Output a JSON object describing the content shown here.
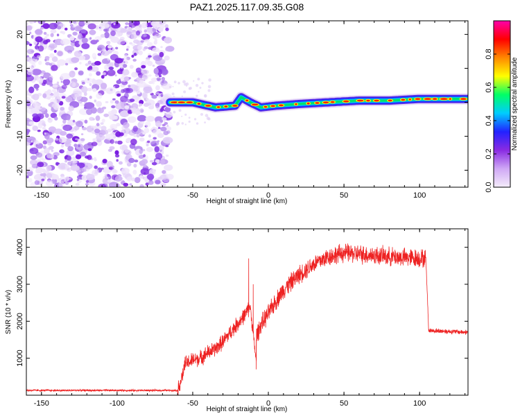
{
  "title": "PAZ1.2025.117.09.35.G08",
  "chart_data": [
    {
      "type": "heatmap",
      "xlabel": "Height of straight line (km)",
      "ylabel": "Frequency (Hz)",
      "xlim": [
        -160,
        132
      ],
      "ylim": [
        -25,
        24
      ],
      "xticks": [
        -150,
        -100,
        -50,
        0,
        50,
        100
      ],
      "yticks": [
        -20,
        -10,
        0,
        10,
        20
      ],
      "colorbar": {
        "label": "Normalized spectral amplitude",
        "range": [
          0,
          1
        ],
        "ticks": [
          "0.0",
          "0.2",
          "0.4",
          "0.6",
          "0.8"
        ],
        "colors": [
          "#f4ecfa",
          "#cfa8f5",
          "#8a2be2",
          "#2222ff",
          "#00ccff",
          "#00ff66",
          "#ffff00",
          "#ff8800",
          "#ff0000",
          "#ff00aa"
        ]
      },
      "noise_region_x": [
        -160,
        -65
      ],
      "ridge": {
        "x": [
          -65,
          -50,
          -35,
          -22,
          -18,
          -12,
          -5,
          5,
          20,
          40,
          60,
          80,
          100,
          110,
          132
        ],
        "y": [
          0,
          0,
          -1.5,
          -1,
          1.5,
          0,
          -1.5,
          -1,
          -0.5,
          0,
          0.5,
          0.5,
          1,
          1,
          1
        ]
      }
    },
    {
      "type": "line",
      "xlabel": "Height of straight line (km)",
      "ylabel": "SNR (10 * v/v)",
      "xlim": [
        -160,
        132
      ],
      "ylim": [
        0,
        4500
      ],
      "xticks": [
        -150,
        -100,
        -50,
        0,
        50,
        100
      ],
      "yticks": [
        1000,
        2000,
        3000,
        4000
      ],
      "color": "#ee2222",
      "segments": [
        {
          "x": [
            -160,
            -60
          ],
          "y": [
            130,
            130
          ],
          "noise": 30
        },
        {
          "x": [
            -60,
            -57,
            -55,
            -50,
            -45,
            -40,
            -35,
            -30,
            -25,
            -20,
            -15,
            -12
          ],
          "y": [
            120,
            500,
            850,
            950,
            1000,
            1150,
            1250,
            1450,
            1700,
            1950,
            2200,
            2400
          ],
          "noise": 250
        },
        {
          "x": [
            -12,
            -8
          ],
          "y": [
            2400,
            900
          ],
          "noise": 200
        },
        {
          "x": [
            -8,
            -5,
            0,
            5,
            10,
            20,
            30,
            40,
            50
          ],
          "y": [
            1600,
            1900,
            2200,
            2550,
            2850,
            3250,
            3550,
            3750,
            3850
          ],
          "noise": 300
        },
        {
          "x": [
            50,
            70,
            90,
            104
          ],
          "y": [
            3850,
            3780,
            3720,
            3700
          ],
          "noise": 300
        },
        {
          "x": [
            104,
            106
          ],
          "y": [
            3800,
            1800
          ],
          "noise": 100
        },
        {
          "x": [
            106,
            132
          ],
          "y": [
            1750,
            1700
          ],
          "noise": 80
        }
      ],
      "spikes": [
        {
          "x": -13,
          "y": 3700
        },
        {
          "x": -10,
          "y": 3000
        },
        {
          "x": -8,
          "y": 700
        }
      ]
    }
  ]
}
